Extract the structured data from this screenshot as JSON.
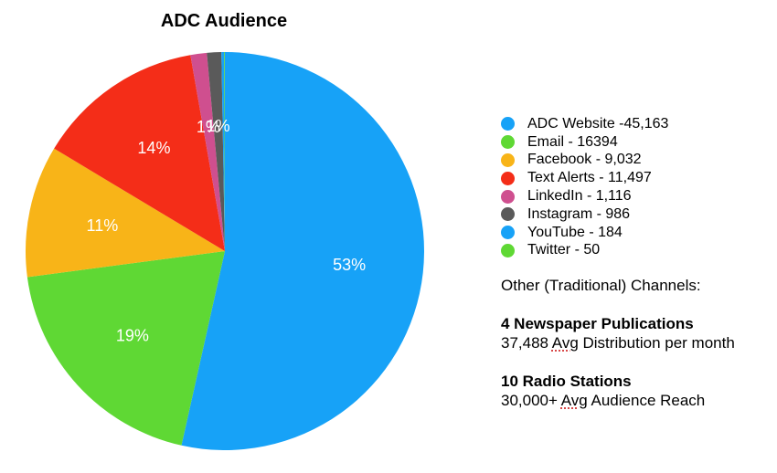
{
  "chart_data": {
    "type": "pie",
    "title": "ADC Audience",
    "slices": [
      {
        "label": "ADC Website -45,163",
        "name": "ADC Website",
        "value": 45163,
        "color": "#17a2f7",
        "pct_label": "53%"
      },
      {
        "label": "Email - 16394",
        "name": "Email",
        "value": 16394,
        "color": "#5fd834",
        "pct_label": "19%"
      },
      {
        "label": "Facebook - 9,032",
        "name": "Facebook",
        "value": 9032,
        "color": "#f8b418",
        "pct_label": "11%"
      },
      {
        "label": "Text Alerts - 11,497",
        "name": "Text Alerts",
        "value": 11497,
        "color": "#f42d18",
        "pct_label": "14%"
      },
      {
        "label": "LinkedIn - 1,116",
        "name": "LinkedIn",
        "value": 1116,
        "color": "#cf4f8f",
        "pct_label": "1%"
      },
      {
        "label": "Instagram - 986",
        "name": "Instagram",
        "value": 986,
        "color": "#5a5a5a",
        "pct_label": "1%"
      },
      {
        "label": "YouTube - 184",
        "name": "YouTube",
        "value": 184,
        "color": "#17a2f7",
        "pct_label": ""
      },
      {
        "label": "Twitter - 50",
        "name": "Twitter",
        "value": 50,
        "color": "#5fd834",
        "pct_label": ""
      }
    ],
    "legend_position": "right",
    "start_angle": "top",
    "direction": "clockwise"
  },
  "notes": {
    "heading": "Other (Traditional) Channels:",
    "publications": [
      {
        "title": "4 Newspaper Publications",
        "pre": "37,488 ",
        "flag": "Avg",
        "post": " Distribution per month"
      },
      {
        "title": "10 Radio Stations",
        "pre": "30,000+ ",
        "flag": "Avg",
        "post": " Audience Reach"
      }
    ]
  }
}
